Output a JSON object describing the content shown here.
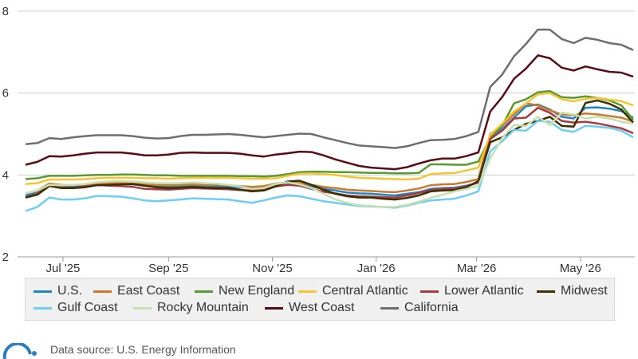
{
  "chart_data": {
    "type": "line",
    "title": "",
    "xlabel": "",
    "ylabel": "",
    "ylim": [
      2,
      8
    ],
    "yticks": [
      2,
      4,
      6,
      8
    ],
    "grid": true,
    "legend_placement": "bottom",
    "x_ticks": [
      {
        "label": "Jul '25",
        "date": "2025-07-01"
      },
      {
        "label": "Sep '25",
        "date": "2025-09-01"
      },
      {
        "label": "Nov '25",
        "date": "2025-11-01"
      },
      {
        "label": "Jan '26",
        "date": "2026-01-01"
      },
      {
        "label": "Mar '26",
        "date": "2026-03-01"
      },
      {
        "label": "May '26",
        "date": "2026-05-01"
      }
    ],
    "x": [
      "2025-06-09",
      "2025-06-16",
      "2025-06-23",
      "2025-06-30",
      "2025-07-07",
      "2025-07-14",
      "2025-07-21",
      "2025-07-28",
      "2025-08-04",
      "2025-08-11",
      "2025-08-18",
      "2025-08-25",
      "2025-09-01",
      "2025-09-08",
      "2025-09-15",
      "2025-09-22",
      "2025-09-29",
      "2025-10-06",
      "2025-10-13",
      "2025-10-20",
      "2025-10-27",
      "2025-11-03",
      "2025-11-10",
      "2025-11-17",
      "2025-11-24",
      "2025-12-01",
      "2025-12-08",
      "2025-12-15",
      "2025-12-22",
      "2025-12-29",
      "2026-01-05",
      "2026-01-12",
      "2026-01-19",
      "2026-01-26",
      "2026-02-02",
      "2026-02-09",
      "2026-02-16",
      "2026-02-23",
      "2026-03-02",
      "2026-03-09",
      "2026-03-16",
      "2026-03-23",
      "2026-03-30",
      "2026-04-06",
      "2026-04-13",
      "2026-04-20",
      "2026-04-27",
      "2026-05-04",
      "2026-05-11",
      "2026-05-18",
      "2026-05-25",
      "2026-06-01"
    ],
    "series": [
      {
        "name": "U.S.",
        "color": "#1f83c8",
        "values": [
          3.5,
          3.6,
          3.78,
          3.73,
          3.72,
          3.74,
          3.78,
          3.78,
          3.78,
          3.77,
          3.74,
          3.73,
          3.72,
          3.73,
          3.74,
          3.73,
          3.73,
          3.72,
          3.7,
          3.68,
          3.7,
          3.76,
          3.79,
          3.78,
          3.72,
          3.66,
          3.62,
          3.57,
          3.55,
          3.54,
          3.52,
          3.5,
          3.54,
          3.58,
          3.66,
          3.68,
          3.69,
          3.74,
          3.81,
          4.92,
          5.12,
          5.4,
          5.68,
          5.72,
          5.6,
          5.42,
          5.38,
          5.64,
          5.65,
          5.62,
          5.56,
          5.4
        ]
      },
      {
        "name": "East Coast",
        "color": "#c87a2d",
        "values": [
          3.55,
          3.62,
          3.79,
          3.76,
          3.75,
          3.77,
          3.8,
          3.8,
          3.8,
          3.79,
          3.77,
          3.76,
          3.75,
          3.76,
          3.77,
          3.76,
          3.76,
          3.75,
          3.73,
          3.71,
          3.73,
          3.79,
          3.82,
          3.81,
          3.76,
          3.71,
          3.68,
          3.64,
          3.62,
          3.61,
          3.59,
          3.58,
          3.62,
          3.67,
          3.75,
          3.77,
          3.78,
          3.83,
          3.9,
          5.0,
          5.2,
          5.48,
          5.75,
          5.7,
          5.58,
          5.48,
          5.46,
          5.5,
          5.48,
          5.44,
          5.4,
          5.3
        ]
      },
      {
        "name": "New England",
        "color": "#5a9a32",
        "values": [
          3.9,
          3.92,
          3.98,
          3.98,
          3.98,
          3.99,
          4.0,
          4.0,
          4.01,
          4.01,
          4.0,
          3.99,
          3.99,
          3.98,
          3.98,
          3.98,
          3.98,
          3.98,
          3.97,
          3.97,
          3.96,
          3.98,
          4.02,
          4.07,
          4.08,
          4.08,
          4.07,
          4.07,
          4.06,
          4.05,
          4.05,
          4.04,
          4.04,
          4.05,
          4.26,
          4.26,
          4.25,
          4.25,
          4.33,
          4.9,
          5.2,
          5.75,
          5.85,
          6.02,
          6.05,
          5.9,
          5.88,
          5.92,
          5.88,
          5.82,
          5.7,
          5.35
        ]
      },
      {
        "name": "Central Atlantic",
        "color": "#f5c431",
        "values": [
          3.78,
          3.8,
          3.89,
          3.89,
          3.89,
          3.9,
          3.92,
          3.93,
          3.93,
          3.93,
          3.92,
          3.92,
          3.91,
          3.92,
          3.93,
          3.93,
          3.93,
          3.93,
          3.92,
          3.91,
          3.91,
          3.92,
          3.98,
          4.03,
          4.04,
          4.02,
          4.0,
          3.96,
          3.93,
          3.92,
          3.91,
          3.9,
          3.89,
          3.91,
          4.02,
          4.04,
          4.05,
          4.11,
          4.18,
          4.98,
          5.25,
          5.55,
          5.75,
          5.97,
          6.0,
          5.85,
          5.8,
          5.86,
          5.88,
          5.84,
          5.8,
          5.7
        ]
      },
      {
        "name": "Lower Atlantic",
        "color": "#a93a3f",
        "values": [
          3.45,
          3.55,
          3.74,
          3.7,
          3.68,
          3.72,
          3.76,
          3.74,
          3.73,
          3.71,
          3.66,
          3.65,
          3.64,
          3.66,
          3.68,
          3.67,
          3.66,
          3.65,
          3.63,
          3.62,
          3.65,
          3.72,
          3.76,
          3.74,
          3.66,
          3.59,
          3.55,
          3.5,
          3.48,
          3.47,
          3.46,
          3.45,
          3.5,
          3.56,
          3.63,
          3.66,
          3.67,
          3.72,
          3.82,
          4.88,
          5.08,
          5.38,
          5.4,
          5.64,
          5.52,
          5.32,
          5.28,
          5.3,
          5.26,
          5.2,
          5.14,
          5.02
        ]
      },
      {
        "name": "Midwest",
        "color": "#3d3000",
        "values": [
          3.45,
          3.52,
          3.73,
          3.68,
          3.68,
          3.7,
          3.75,
          3.76,
          3.77,
          3.78,
          3.74,
          3.7,
          3.68,
          3.69,
          3.71,
          3.69,
          3.68,
          3.68,
          3.64,
          3.6,
          3.62,
          3.72,
          3.84,
          3.86,
          3.76,
          3.64,
          3.54,
          3.48,
          3.45,
          3.45,
          3.42,
          3.4,
          3.44,
          3.5,
          3.6,
          3.62,
          3.63,
          3.7,
          3.85,
          4.8,
          4.92,
          5.1,
          5.25,
          5.32,
          5.42,
          5.2,
          5.18,
          5.76,
          5.82,
          5.74,
          5.6,
          5.28
        ]
      },
      {
        "name": "Gulf Coast",
        "color": "#6dcdf5",
        "values": [
          3.12,
          3.22,
          3.45,
          3.4,
          3.4,
          3.43,
          3.49,
          3.48,
          3.47,
          3.43,
          3.38,
          3.36,
          3.38,
          3.4,
          3.43,
          3.42,
          3.41,
          3.4,
          3.36,
          3.32,
          3.38,
          3.45,
          3.5,
          3.48,
          3.42,
          3.36,
          3.32,
          3.28,
          3.24,
          3.23,
          3.22,
          3.2,
          3.25,
          3.32,
          3.38,
          3.4,
          3.42,
          3.5,
          3.6,
          4.58,
          4.82,
          5.1,
          5.08,
          5.32,
          5.3,
          5.1,
          5.05,
          5.2,
          5.18,
          5.15,
          5.08,
          4.92
        ]
      },
      {
        "name": "Rocky Mountain",
        "color": "#c8dfb0",
        "values": [
          3.55,
          3.62,
          3.76,
          3.75,
          3.76,
          3.78,
          3.82,
          3.84,
          3.85,
          3.84,
          3.82,
          3.8,
          3.8,
          3.8,
          3.82,
          3.8,
          3.79,
          3.76,
          3.72,
          3.66,
          3.68,
          3.78,
          3.82,
          3.77,
          3.68,
          3.54,
          3.4,
          3.32,
          3.26,
          3.24,
          3.22,
          3.22,
          3.27,
          3.35,
          3.44,
          3.52,
          3.6,
          3.66,
          3.74,
          4.4,
          4.9,
          5.22,
          5.2,
          5.42,
          5.22,
          5.52,
          5.48,
          5.38,
          5.42,
          5.38,
          5.3,
          5.25
        ]
      },
      {
        "name": "West Coast",
        "color": "#5a0a15",
        "values": [
          4.25,
          4.32,
          4.46,
          4.45,
          4.48,
          4.52,
          4.55,
          4.55,
          4.55,
          4.52,
          4.48,
          4.48,
          4.5,
          4.54,
          4.55,
          4.54,
          4.54,
          4.54,
          4.52,
          4.48,
          4.45,
          4.5,
          4.53,
          4.57,
          4.56,
          4.48,
          4.38,
          4.3,
          4.22,
          4.18,
          4.16,
          4.14,
          4.19,
          4.28,
          4.36,
          4.4,
          4.4,
          4.46,
          4.55,
          5.55,
          5.9,
          6.35,
          6.6,
          6.92,
          6.85,
          6.62,
          6.55,
          6.65,
          6.58,
          6.52,
          6.5,
          6.4
        ]
      },
      {
        "name": "California",
        "color": "#6e6e6e",
        "values": [
          4.75,
          4.78,
          4.9,
          4.88,
          4.92,
          4.95,
          4.97,
          4.97,
          4.97,
          4.95,
          4.91,
          4.89,
          4.9,
          4.95,
          4.98,
          4.98,
          4.99,
          5.0,
          4.98,
          4.95,
          4.92,
          4.95,
          4.98,
          5.01,
          5.0,
          4.92,
          4.85,
          4.78,
          4.72,
          4.7,
          4.68,
          4.66,
          4.7,
          4.78,
          4.85,
          4.86,
          4.88,
          4.95,
          5.05,
          6.15,
          6.45,
          6.9,
          7.2,
          7.55,
          7.55,
          7.32,
          7.22,
          7.35,
          7.3,
          7.22,
          7.18,
          7.05
        ]
      }
    ]
  },
  "footer": {
    "source_text": "Data source: U.S. Energy Information"
  }
}
